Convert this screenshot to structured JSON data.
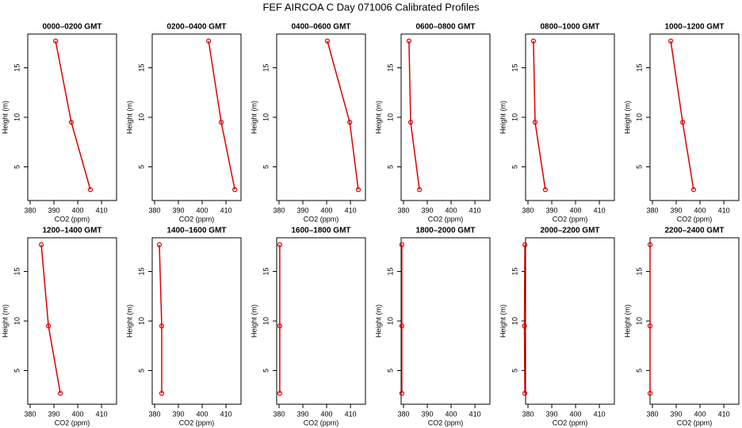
{
  "title": "FEF AIRCOA C  Day 071006  Calibrated Profiles",
  "chart_data": [
    {
      "type": "line",
      "title": "0000–0200 GMT",
      "x_label": "CO2 (ppm)",
      "y_label": "Height (m)",
      "x": [
        390.7,
        397.3,
        405.3
      ],
      "values": [
        17.7,
        9.5,
        2.7
      ],
      "color": "#dd0000",
      "xlim": [
        379,
        416.3
      ],
      "ylim": [
        1.6,
        18.4
      ],
      "xticks": [
        380,
        390,
        400,
        410
      ],
      "yticks": [
        5,
        10,
        15
      ]
    },
    {
      "type": "line",
      "title": "0200–0400 GMT",
      "x_label": "CO2 (ppm)",
      "y_label": "Height (m)",
      "x": [
        402.7,
        408,
        413.7
      ],
      "values": [
        17.7,
        9.5,
        2.7
      ],
      "color": "#dd0000",
      "xlim": [
        379,
        416.3
      ],
      "ylim": [
        1.6,
        18.4
      ],
      "xticks": [
        380,
        390,
        400,
        410
      ],
      "yticks": [
        5,
        10,
        15
      ]
    },
    {
      "type": "line",
      "title": "0400–0600 GMT",
      "x_label": "CO2 (ppm)",
      "y_label": "Height (m)",
      "x": [
        400.3,
        409.7,
        413.3
      ],
      "values": [
        17.7,
        9.5,
        2.7
      ],
      "color": "#dd0000",
      "xlim": [
        379,
        416.3
      ],
      "ylim": [
        1.6,
        18.4
      ],
      "xticks": [
        380,
        390,
        400,
        410
      ],
      "yticks": [
        5,
        10,
        15
      ]
    },
    {
      "type": "line",
      "title": "0600–0800 GMT",
      "x_label": "CO2 (ppm)",
      "y_label": "Height (m)",
      "x": [
        382.3,
        383,
        386.7
      ],
      "values": [
        17.7,
        9.5,
        2.7
      ],
      "color": "#dd0000",
      "xlim": [
        379,
        416.3
      ],
      "ylim": [
        1.6,
        18.4
      ],
      "xticks": [
        380,
        390,
        400,
        410
      ],
      "yticks": [
        5,
        10,
        15
      ]
    },
    {
      "type": "line",
      "title": "0800–1000 GMT",
      "x_label": "CO2 (ppm)",
      "y_label": "Height (m)",
      "x": [
        382.3,
        383,
        387.3
      ],
      "values": [
        17.7,
        9.5,
        2.7
      ],
      "color": "#dd0000",
      "xlim": [
        379,
        416.3
      ],
      "ylim": [
        1.6,
        18.4
      ],
      "xticks": [
        380,
        390,
        400,
        410
      ],
      "yticks": [
        5,
        10,
        15
      ]
    },
    {
      "type": "line",
      "title": "1000–1200 GMT",
      "x_label": "CO2 (ppm)",
      "y_label": "Height (m)",
      "x": [
        387.7,
        392.7,
        397.3
      ],
      "values": [
        17.7,
        9.5,
        2.7
      ],
      "color": "#dd0000",
      "xlim": [
        379,
        416.3
      ],
      "ylim": [
        1.6,
        18.4
      ],
      "xticks": [
        380,
        390,
        400,
        410
      ],
      "yticks": [
        5,
        10,
        15
      ]
    },
    {
      "type": "line",
      "title": "1200–1400 GMT",
      "x_label": "CO2 (ppm)",
      "y_label": "Height (m)",
      "x": [
        384.7,
        387.7,
        392.7
      ],
      "values": [
        17.7,
        9.5,
        2.7
      ],
      "color": "#dd0000",
      "xlim": [
        379,
        416.3
      ],
      "ylim": [
        1.6,
        18.4
      ],
      "xticks": [
        380,
        390,
        400,
        410
      ],
      "yticks": [
        5,
        10,
        15
      ]
    },
    {
      "type": "line",
      "title": "1400–1600 GMT",
      "x_label": "CO2 (ppm)",
      "y_label": "Height (m)",
      "x": [
        382,
        383,
        383
      ],
      "values": [
        17.7,
        9.5,
        2.7
      ],
      "color": "#dd0000",
      "xlim": [
        379,
        416.3
      ],
      "ylim": [
        1.6,
        18.4
      ],
      "xticks": [
        380,
        390,
        400,
        410
      ],
      "yticks": [
        5,
        10,
        15
      ]
    },
    {
      "type": "line",
      "title": "1600–1800 GMT",
      "x_label": "CO2 (ppm)",
      "y_label": "Height (m)",
      "x": [
        380.3,
        380.3,
        380.3
      ],
      "values": [
        17.7,
        9.5,
        2.7
      ],
      "color": "#dd0000",
      "xlim": [
        379,
        416.3
      ],
      "ylim": [
        1.6,
        18.4
      ],
      "xticks": [
        380,
        390,
        400,
        410
      ],
      "yticks": [
        5,
        10,
        15
      ]
    },
    {
      "type": "line",
      "title": "1800–2000 GMT",
      "x_label": "CO2 (ppm)",
      "y_label": "Height (m)",
      "x": [
        379.3,
        379.3,
        379.3
      ],
      "values": [
        17.7,
        9.5,
        2.7
      ],
      "color": "#dd0000",
      "xlim": [
        379,
        416.3
      ],
      "ylim": [
        1.6,
        18.4
      ],
      "xticks": [
        380,
        390,
        400,
        410
      ],
      "yticks": [
        5,
        10,
        15
      ]
    },
    {
      "type": "line",
      "title": "2000–2200 GMT",
      "x_label": "CO2 (ppm)",
      "y_label": "Height (m)",
      "x": [
        378.7,
        378.5,
        378.7
      ],
      "values": [
        17.7,
        9.5,
        2.7
      ],
      "color": "#dd0000",
      "xlim": [
        379,
        416.3
      ],
      "ylim": [
        1.6,
        18.4
      ],
      "xticks": [
        380,
        390,
        400,
        410
      ],
      "yticks": [
        5,
        10,
        15
      ]
    },
    {
      "type": "line",
      "title": "2200–2400 GMT",
      "x_label": "CO2 (ppm)",
      "y_label": "Height (m)",
      "x": [
        379,
        379,
        379
      ],
      "values": [
        17.7,
        9.5,
        2.7
      ],
      "color": "#dd0000",
      "xlim": [
        379,
        416.3
      ],
      "ylim": [
        1.6,
        18.4
      ],
      "xticks": [
        380,
        390,
        400,
        410
      ],
      "yticks": [
        5,
        10,
        15
      ]
    }
  ]
}
